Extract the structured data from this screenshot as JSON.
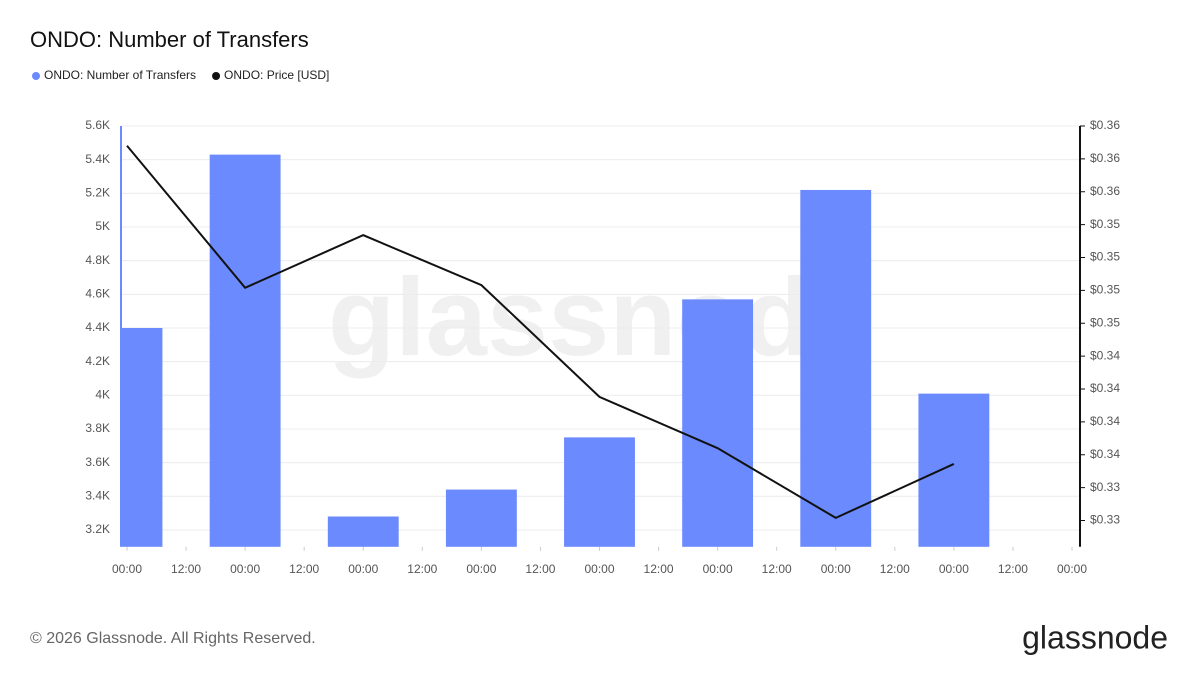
{
  "chart_data": {
    "type": "bar",
    "title": "ONDO: Number of Transfers",
    "watermark": "glassnode",
    "x": [
      0,
      24,
      48,
      72,
      96,
      120,
      144,
      168
    ],
    "xlim": [
      0,
      192
    ],
    "xticks": [
      {
        "value": 0,
        "label": "00:00"
      },
      {
        "value": 12,
        "label": "12:00"
      },
      {
        "value": 24,
        "label": "00:00"
      },
      {
        "value": 36,
        "label": "12:00"
      },
      {
        "value": 48,
        "label": "00:00"
      },
      {
        "value": 60,
        "label": "12:00"
      },
      {
        "value": 72,
        "label": "00:00"
      },
      {
        "value": 84,
        "label": "12:00"
      },
      {
        "value": 96,
        "label": "00:00"
      },
      {
        "value": 108,
        "label": "12:00"
      },
      {
        "value": 120,
        "label": "00:00"
      },
      {
        "value": 132,
        "label": "12:00"
      },
      {
        "value": 144,
        "label": "00:00"
      },
      {
        "value": 156,
        "label": "12:00"
      },
      {
        "value": 168,
        "label": "00:00"
      },
      {
        "value": 180,
        "label": "12:00"
      },
      {
        "value": 192,
        "label": "00:00"
      }
    ],
    "ylim": [
      3100,
      5600
    ],
    "yticks": [
      {
        "value": 3200,
        "label": "3.2K"
      },
      {
        "value": 3400,
        "label": "3.4K"
      },
      {
        "value": 3600,
        "label": "3.6K"
      },
      {
        "value": 3800,
        "label": "3.8K"
      },
      {
        "value": 4000,
        "label": "4K"
      },
      {
        "value": 4200,
        "label": "4.2K"
      },
      {
        "value": 4400,
        "label": "4.4K"
      },
      {
        "value": 4600,
        "label": "4.6K"
      },
      {
        "value": 4800,
        "label": "4.8K"
      },
      {
        "value": 5000,
        "label": "5K"
      },
      {
        "value": 5200,
        "label": "5.2K"
      },
      {
        "value": 5400,
        "label": "5.4K"
      },
      {
        "value": 5600,
        "label": "5.6K"
      }
    ],
    "y2lim": [
      0.328,
      0.36
    ],
    "y2ticks": [
      {
        "value": 0.33,
        "label": "$0.33"
      },
      {
        "value": 0.3325,
        "label": "$0.33"
      },
      {
        "value": 0.335,
        "label": "$0.34"
      },
      {
        "value": 0.3375,
        "label": "$0.34"
      },
      {
        "value": 0.34,
        "label": "$0.34"
      },
      {
        "value": 0.3425,
        "label": "$0.34"
      },
      {
        "value": 0.345,
        "label": "$0.35"
      },
      {
        "value": 0.3475,
        "label": "$0.35"
      },
      {
        "value": 0.35,
        "label": "$0.35"
      },
      {
        "value": 0.3525,
        "label": "$0.35"
      },
      {
        "value": 0.355,
        "label": "$0.36"
      },
      {
        "value": 0.3575,
        "label": "$0.36"
      },
      {
        "value": 0.36,
        "label": "$0.36"
      }
    ],
    "grid": true,
    "series": [
      {
        "name": "ONDO: Number of Transfers",
        "type": "bar",
        "color": "#6b8afd",
        "values": [
          4400,
          5430,
          3280,
          3440,
          3750,
          4570,
          5220,
          4010
        ]
      },
      {
        "name": "ONDO: Price [USD]",
        "type": "line",
        "axis": "y2",
        "color": "#111111",
        "values": [
          0.3585,
          0.3477,
          0.3517,
          0.3479,
          0.3394,
          0.3355,
          0.3302,
          0.3343
        ]
      }
    ]
  },
  "footer": {
    "copyright": "© 2026 Glassnode. All Rights Reserved.",
    "logo": "glassnode"
  }
}
